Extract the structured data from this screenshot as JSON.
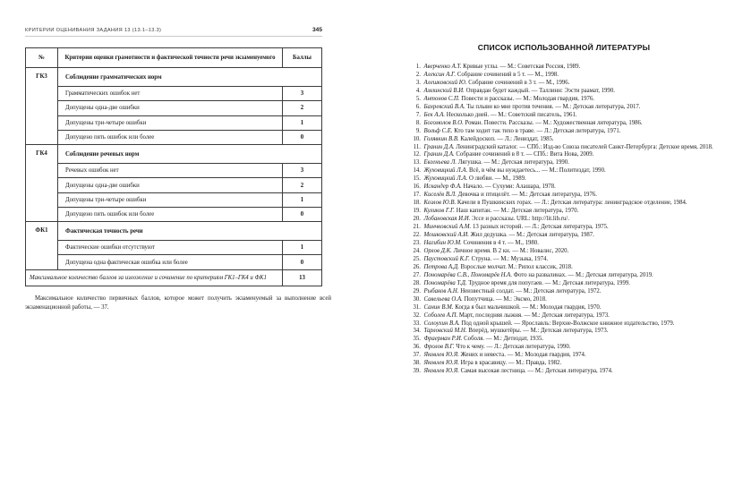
{
  "left_page": {
    "header": {
      "title": "КРИТЕРИИ ОЦЕНИВАНИЯ ЗАДАНИЯ 13 (13.1–13.3)",
      "page_number": "345"
    },
    "table": {
      "col_headers": {
        "num": "№",
        "criteria": "Критерии оценки грамотности и фактической точности речи экзаменуемого",
        "score": "Баллы"
      },
      "groups": [
        {
          "id": "ГК3",
          "title": "Соблюдение грамматических норм",
          "rows": [
            {
              "text": "Грамматических ошибок нет",
              "score": "3"
            },
            {
              "text": "Допущены одна-две ошибки",
              "score": "2"
            },
            {
              "text": "Допущены три-четыре ошибки",
              "score": "1"
            },
            {
              "text": "Допущено пять ошибок или более",
              "score": "0"
            }
          ]
        },
        {
          "id": "ГК4",
          "title": "Соблюдение речевых норм",
          "rows": [
            {
              "text": "Речевых ошибок нет",
              "score": "3"
            },
            {
              "text": "Допущены одна-две ошибки",
              "score": "2"
            },
            {
              "text": "Допущены три-четыре ошибки",
              "score": "1"
            },
            {
              "text": "Допущено пять ошибок или более",
              "score": "0"
            }
          ]
        },
        {
          "id": "ФК1",
          "title": "Фактическая точность речи",
          "rows": [
            {
              "text": "Фактические ошибки отсутствуют",
              "score": "1"
            },
            {
              "text": "Допущена одна фактическая ошибка или более",
              "score": "0"
            }
          ]
        }
      ],
      "total_row": {
        "text": "Максимальное количество баллов за изложение и сочинение по критериям ГК1–ГК4 и ФК1",
        "score": "13"
      }
    },
    "footnote": "Максимальное количество первичных баллов, которое может получить экзаменуемый за выполнение всей экзаменационной работы, — 37."
  },
  "right_page": {
    "title": "СПИСОК ИСПОЛЬЗОВАННОЙ ЛИТЕРАТУРЫ",
    "bibliography": [
      {
        "num": "1.",
        "author": "Аверченко А.Т.",
        "rest": " Кривые углы. — М.: Советская Россия, 1989."
      },
      {
        "num": "2.",
        "author": "Алексин А.Г.",
        "rest": " Собрание сочинений в 5 т. — М., 1998."
      },
      {
        "num": "3.",
        "author": "Алешковский Ю.",
        "rest": " Собрание сочинений в 3 т. — М., 1996."
      },
      {
        "num": "4.",
        "author": "Амлинский В.И.",
        "rest": " Оправдан будет каждый. — Таллинн: Ээсти раамат, 1990."
      },
      {
        "num": "5.",
        "author": "Антонов С.П.",
        "rest": " Повести и рассказы. — М.: Молодая гвардия, 1976."
      },
      {
        "num": "6.",
        "author": "Бахревский В.А.",
        "rest": " Ты плыви ко мне против течения. — М.: Детская литература, 2017."
      },
      {
        "num": "7.",
        "author": "Бек А.А.",
        "rest": " Несколько дней. — М.: Советский писатель, 1961."
      },
      {
        "num": "8.",
        "author": "Богомолов В.О.",
        "rest": " Роман. Повести. Рассказы. — М.: Художественная литература, 1986."
      },
      {
        "num": "9.",
        "author": "Вольф С.Е.",
        "rest": " Кто там ходит так тихо в траве. — Л.: Детская литература, 1971."
      },
      {
        "num": "10.",
        "author": "Голявкин В.В.",
        "rest": " Калейдоскоп. — Л.: Лениздат, 1985."
      },
      {
        "num": "11.",
        "author": "Гранин Д.А.",
        "rest": " Ленинградский каталог. — СПб.: Изд-во Союза писателей Санкт-Петербурга: Детское время, 2018."
      },
      {
        "num": "12.",
        "author": "Гранин Д.А.",
        "rest": " Собрание сочинений в 8 т. — СПб.: Вита Нова, 2009."
      },
      {
        "num": "13.",
        "author": "Евгеньева Л.",
        "rest": " Лягушка. — М.: Детская литература, 1990."
      },
      {
        "num": "14.",
        "author": "Жуховицкий Л.А.",
        "rest": " Всё, в чём вы нуждаетесь... — М.: Политиздат, 1990."
      },
      {
        "num": "15.",
        "author": "Жуховицкий Л.А.",
        "rest": " О любви. — М., 1989."
      },
      {
        "num": "16.",
        "author": "Искандер Ф.А.",
        "rest": " Начало. — Сухуми: Алашара, 1978."
      },
      {
        "num": "17.",
        "author": "Киселёв В.Л.",
        "rest": " Девочка и птицелёт. — М.: Детская литература, 1976."
      },
      {
        "num": "18.",
        "author": "Козлов Ю.В.",
        "rest": " Качели в Пушкинских горах. — Л.: Детская литература: ленинградское отделение, 1984."
      },
      {
        "num": "19.",
        "author": "Куликов Г.Г.",
        "rest": " Наш капитан. — М.: Детская литература, 1970."
      },
      {
        "num": "20.",
        "author": "Лобановская И.И.",
        "rest": " Эссе и рассказы. URL: http://lit.lib.ru/."
      },
      {
        "num": "21.",
        "author": "Минчковский А.М.",
        "rest": " 13 разных историй. — Л.: Детская литература, 1975."
      },
      {
        "num": "22.",
        "author": "Мошковский А.И.",
        "rest": " Жил дедушка. — М.: Детская литература, 1987."
      },
      {
        "num": "23.",
        "author": "Нагибин Ю.М.",
        "rest": " Сочинения в 4 т. — М., 1980."
      },
      {
        "num": "24.",
        "author": "Орлов Д.К.",
        "rest": " Личное время. В 2 кн. — М.: Новалис, 2020."
      },
      {
        "num": "25.",
        "author": "Паустовский К.Г.",
        "rest": " Струна. — М.: Музыка, 1974."
      },
      {
        "num": "26.",
        "author": "Петрова А.Д.",
        "rest": " Взрослые молчат. М.: Рипол классик, 2018."
      },
      {
        "num": "27.",
        "author": "Пономарёва С.В., Пономарёв Н.А.",
        "rest": " Фото на развалинах. — М.: Детская литература, 2019."
      },
      {
        "num": "28.",
        "author": "Пономарёва Т.Д.",
        "rest": " Трудное время для попугаев. — М.: Детская литература, 1999."
      },
      {
        "num": "29.",
        "author": "Рыбаков А.Н.",
        "rest": " Неизвестный солдат. — М.: Детская литература, 1972."
      },
      {
        "num": "30.",
        "author": "Савельева О.А.",
        "rest": " Попутчица. — М.: Эксмо, 2018."
      },
      {
        "num": "31.",
        "author": "Санин В.М.",
        "rest": " Когда я был мальчишкой. — М.: Молодая гвардия, 1970."
      },
      {
        "num": "32.",
        "author": "Соболев А.П.",
        "rest": " Март, последняя лыжня. — М.: Детская литература, 1973."
      },
      {
        "num": "33.",
        "author": "Солоухин В.А.",
        "rest": " Под одной крышей. — Ярославль: Верхне-Волжское книжное издательство, 1979."
      },
      {
        "num": "34.",
        "author": "Тарловский М.Н.",
        "rest": " Вперёд, мушкетёры. — М.: Детская литература, 1973."
      },
      {
        "num": "35.",
        "author": "Фраерман Р.И.",
        "rest": " Соболя. — М.: Детиздат, 1935."
      },
      {
        "num": "36.",
        "author": "Фролов В.Г.",
        "rest": " Что к чему. — Л.: Детская литература, 1990."
      },
      {
        "num": "37.",
        "author": "Яковлев Ю.Я.",
        "rest": " Жених и невеста. — М.: Молодая гвардия, 1974."
      },
      {
        "num": "38.",
        "author": "Яковлев Ю.Я.",
        "rest": " Игра в красавицу. — М.: Правда, 1982."
      },
      {
        "num": "39.",
        "author": "Яковлев Ю.Я.",
        "rest": " Самая высокая лестница. — М.: Детская литература, 1974."
      }
    ]
  }
}
